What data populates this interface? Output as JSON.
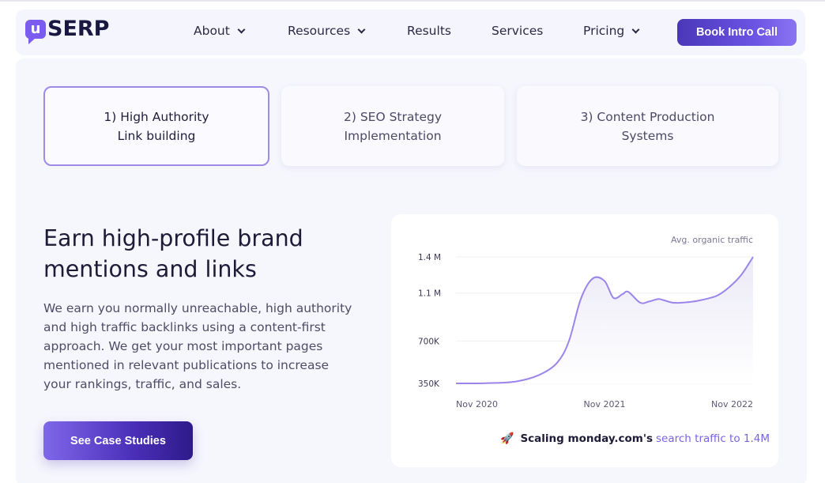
{
  "nav": {
    "logo_mark": "u",
    "logo_text": "SERP",
    "items": [
      {
        "label": "About",
        "has_dropdown": true
      },
      {
        "label": "Resources",
        "has_dropdown": true
      },
      {
        "label": "Results",
        "has_dropdown": false
      },
      {
        "label": "Services",
        "has_dropdown": false
      },
      {
        "label": "Pricing",
        "has_dropdown": true
      }
    ],
    "cta_label": "Book Intro Call"
  },
  "tabs": [
    {
      "line1": "1) High Authority",
      "line2": "Link building",
      "active": true
    },
    {
      "line1": "2) SEO Strategy",
      "line2": "Implementation",
      "active": false
    },
    {
      "line1": "3) Content Production",
      "line2": "Systems",
      "active": false
    }
  ],
  "content": {
    "headline_line1": "Earn high-profile brand",
    "headline_line2": "mentions and links",
    "paragraph": "We earn you normally unreachable, high authority and high traffic backlinks using a content-first approach. We get your most important pages mentioned in relevant publications to increase your rankings, traffic, and sales.",
    "cta_label": "See Case Studies"
  },
  "chart_data": {
    "type": "area",
    "title": "Avg. organic traffic",
    "y_ticks": [
      "1.4 M",
      "1.1 M",
      "700K",
      "350K"
    ],
    "y_tick_values": [
      1400000,
      1100000,
      700000,
      350000
    ],
    "x_ticks": [
      "Nov 2020",
      "Nov 2021",
      "Nov 2022"
    ],
    "ylim": [
      350000,
      1400000
    ],
    "x": [
      0,
      0.1,
      0.2,
      0.28,
      0.34,
      0.38,
      0.42,
      0.46,
      0.5,
      0.53,
      0.56,
      0.58,
      0.62,
      0.65,
      0.68,
      0.7,
      0.73,
      0.76,
      0.8,
      0.84,
      0.88,
      0.92,
      0.96,
      1.0
    ],
    "values": [
      350000,
      352000,
      365000,
      420000,
      520000,
      700000,
      1050000,
      1220000,
      1200000,
      1060000,
      1090000,
      1110000,
      1020000,
      1030000,
      1050000,
      1040000,
      1020000,
      1020000,
      1030000,
      1050000,
      1080000,
      1150000,
      1250000,
      1400000
    ],
    "series_color": "#9b85ea",
    "fill_color": "#ebeaf7",
    "caption_bold": "Scaling monday.com's",
    "caption_highlight": "search traffic to 1.4M",
    "caption_icon": "rocket-icon"
  }
}
